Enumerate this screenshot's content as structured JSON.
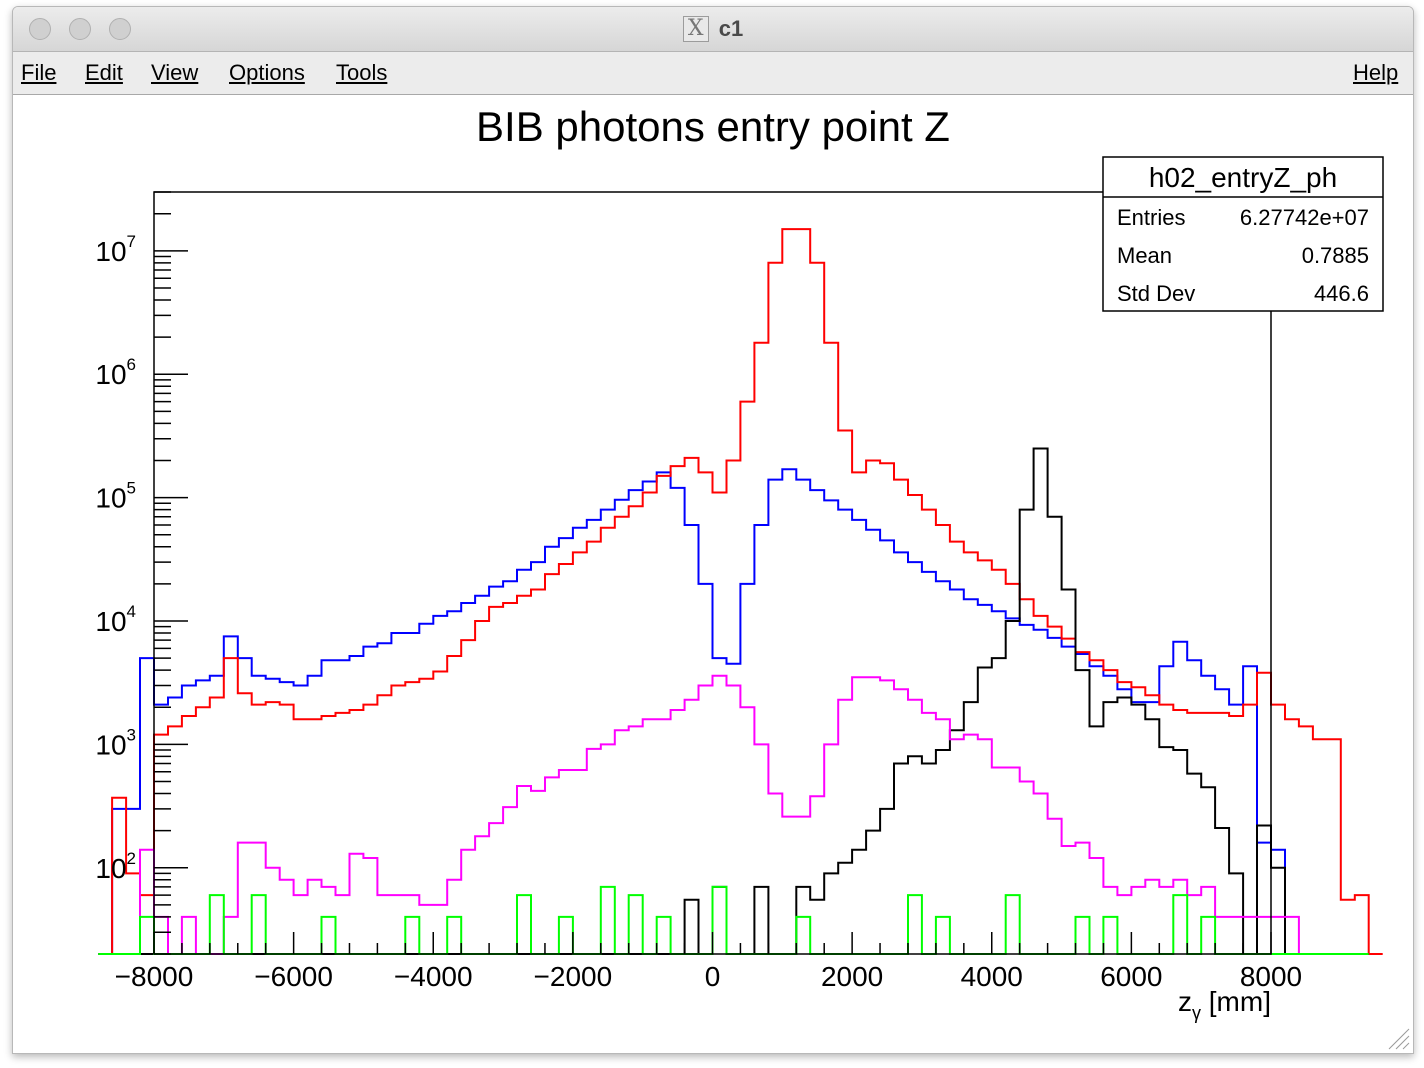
{
  "window": {
    "title": "c1",
    "icon": "x11-icon",
    "controls": [
      "close-button",
      "minimize-button",
      "zoom-button"
    ]
  },
  "menu": {
    "items": [
      {
        "key": "file",
        "label": "File"
      },
      {
        "key": "edit",
        "label": "Edit"
      },
      {
        "key": "view",
        "label": "View"
      },
      {
        "key": "options",
        "label": "Options"
      },
      {
        "key": "tools",
        "label": "Tools"
      }
    ],
    "help": "Help"
  },
  "stats": {
    "name": "h02_entryZ_ph",
    "rows": [
      {
        "label": "Entries",
        "value": "6.27742e+07"
      },
      {
        "label": "Mean",
        "value": "0.7885"
      },
      {
        "label": "Std Dev",
        "value": "446.6"
      }
    ]
  },
  "chart_data": {
    "type": "line",
    "title": "BIB photons entry point Z",
    "xlabel_main": "z",
    "xlabel_sub": "γ",
    "xlabel_unit": " [mm]",
    "ylabel": "",
    "xlim": [
      -8000,
      8000
    ],
    "ylim": [
      20,
      30000000
    ],
    "log_y": true,
    "bin_width": 200,
    "x_ticks": [
      "−8000",
      "−6000",
      "−4000",
      "−2000",
      "0",
      "2000",
      "4000",
      "6000",
      "8000"
    ],
    "y_ticks": [
      {
        "base": "10",
        "exp": "2"
      },
      {
        "base": "10",
        "exp": "3"
      },
      {
        "base": "10",
        "exp": "4"
      },
      {
        "base": "10",
        "exp": "5"
      },
      {
        "base": "10",
        "exp": "6"
      },
      {
        "base": "10",
        "exp": "7"
      }
    ],
    "series": [
      {
        "color": "#0000ff",
        "values": [
          0,
          300,
          300,
          5000,
          2100,
          2400,
          3000,
          3300,
          3600,
          7500,
          5000,
          3600,
          3400,
          3200,
          3000,
          3600,
          4800,
          4800,
          5200,
          6200,
          6600,
          8000,
          8000,
          9500,
          11000,
          12000,
          14000,
          16000,
          19000,
          21000,
          26000,
          30000,
          40000,
          47000,
          57000,
          66000,
          80000,
          96000,
          115000,
          135000,
          160000,
          120000,
          60000,
          20000,
          5000,
          4500,
          20000,
          60000,
          140000,
          170000,
          140000,
          115000,
          95000,
          80000,
          66000,
          55000,
          45000,
          36000,
          30000,
          25000,
          21000,
          18000,
          15000,
          13500,
          12000,
          10500,
          9300,
          8500,
          7300,
          6200,
          5400,
          4300,
          3600,
          2800,
          2200,
          2200,
          4300,
          6800,
          4800,
          3600,
          2800,
          2100,
          4300,
          160,
          140,
          0
        ]
      },
      {
        "color": "#ff0000",
        "values": [
          0,
          370,
          90,
          60,
          1200,
          1400,
          1700,
          2000,
          2400,
          5000,
          2600,
          2100,
          2200,
          2100,
          1600,
          1600,
          1700,
          1800,
          1900,
          2100,
          2500,
          3000,
          3200,
          3400,
          3900,
          5200,
          7000,
          10000,
          13000,
          14000,
          16000,
          18000,
          24000,
          29000,
          36000,
          44000,
          57000,
          70000,
          85000,
          110000,
          150000,
          180000,
          210000,
          160000,
          110000,
          200000,
          600000,
          1800000,
          8000000,
          15000000,
          15000000,
          8000000,
          1800000,
          350000,
          160000,
          200000,
          190000,
          140000,
          105000,
          80000,
          60000,
          44000,
          36000,
          31000,
          26000,
          20000,
          15000,
          11000,
          9000,
          7200,
          5600,
          4800,
          4000,
          3200,
          2900,
          2500,
          2100,
          1900,
          1800,
          1800,
          1800,
          1700,
          2100,
          3800,
          2100,
          1600,
          1400,
          1100,
          1100,
          55,
          60,
          0
        ]
      },
      {
        "color": "#000000",
        "values": [
          0,
          0,
          0,
          0,
          0,
          0,
          0,
          0,
          0,
          0,
          0,
          0,
          0,
          0,
          0,
          0,
          0,
          0,
          0,
          0,
          0,
          0,
          0,
          0,
          0,
          0,
          0,
          0,
          0,
          0,
          0,
          0,
          0,
          0,
          0,
          0,
          0,
          0,
          0,
          0,
          0,
          0,
          55,
          0,
          70,
          0,
          0,
          70,
          0,
          0,
          70,
          55,
          90,
          110,
          140,
          200,
          300,
          700,
          800,
          700,
          900,
          1300,
          2200,
          4200,
          5000,
          10000,
          80000,
          250000,
          70000,
          18000,
          4000,
          1400,
          2200,
          2400,
          2100,
          1600,
          950,
          900,
          580,
          450,
          210,
          90,
          0,
          220,
          100,
          0,
          0,
          0,
          0,
          0,
          0
        ]
      },
      {
        "color": "#ff00ff",
        "values": [
          0,
          0,
          0,
          140,
          40,
          0,
          40,
          0,
          0,
          40,
          160,
          160,
          100,
          80,
          60,
          80,
          70,
          60,
          130,
          120,
          60,
          60,
          60,
          50,
          50,
          80,
          140,
          180,
          230,
          310,
          460,
          420,
          540,
          620,
          620,
          920,
          1000,
          1300,
          1400,
          1600,
          1600,
          1900,
          2300,
          3000,
          3600,
          3000,
          2000,
          1000,
          400,
          260,
          260,
          380,
          1000,
          2300,
          3500,
          3500,
          3300,
          2800,
          2300,
          1800,
          1600,
          1100,
          1200,
          1100,
          650,
          650,
          500,
          400,
          250,
          150,
          160,
          120,
          70,
          60,
          70,
          80,
          70,
          80,
          60,
          70,
          40,
          40,
          40,
          40,
          40,
          40,
          0
        ]
      },
      {
        "color": "#00ff00",
        "values": [
          0,
          0,
          0,
          40,
          0,
          0,
          0,
          0,
          60,
          0,
          0,
          60,
          0,
          0,
          0,
          0,
          40,
          0,
          0,
          0,
          0,
          0,
          40,
          0,
          0,
          40,
          0,
          0,
          0,
          0,
          60,
          0,
          0,
          40,
          0,
          0,
          70,
          0,
          60,
          0,
          40,
          0,
          0,
          0,
          70,
          0,
          0,
          0,
          0,
          0,
          40,
          0,
          0,
          0,
          0,
          0,
          0,
          0,
          60,
          0,
          40,
          0,
          0,
          0,
          0,
          60,
          0,
          0,
          0,
          0,
          40,
          0,
          40,
          0,
          0,
          0,
          0,
          60,
          0,
          40,
          0,
          0,
          0,
          0,
          0,
          0,
          0,
          0,
          0,
          0,
          0
        ]
      }
    ]
  }
}
